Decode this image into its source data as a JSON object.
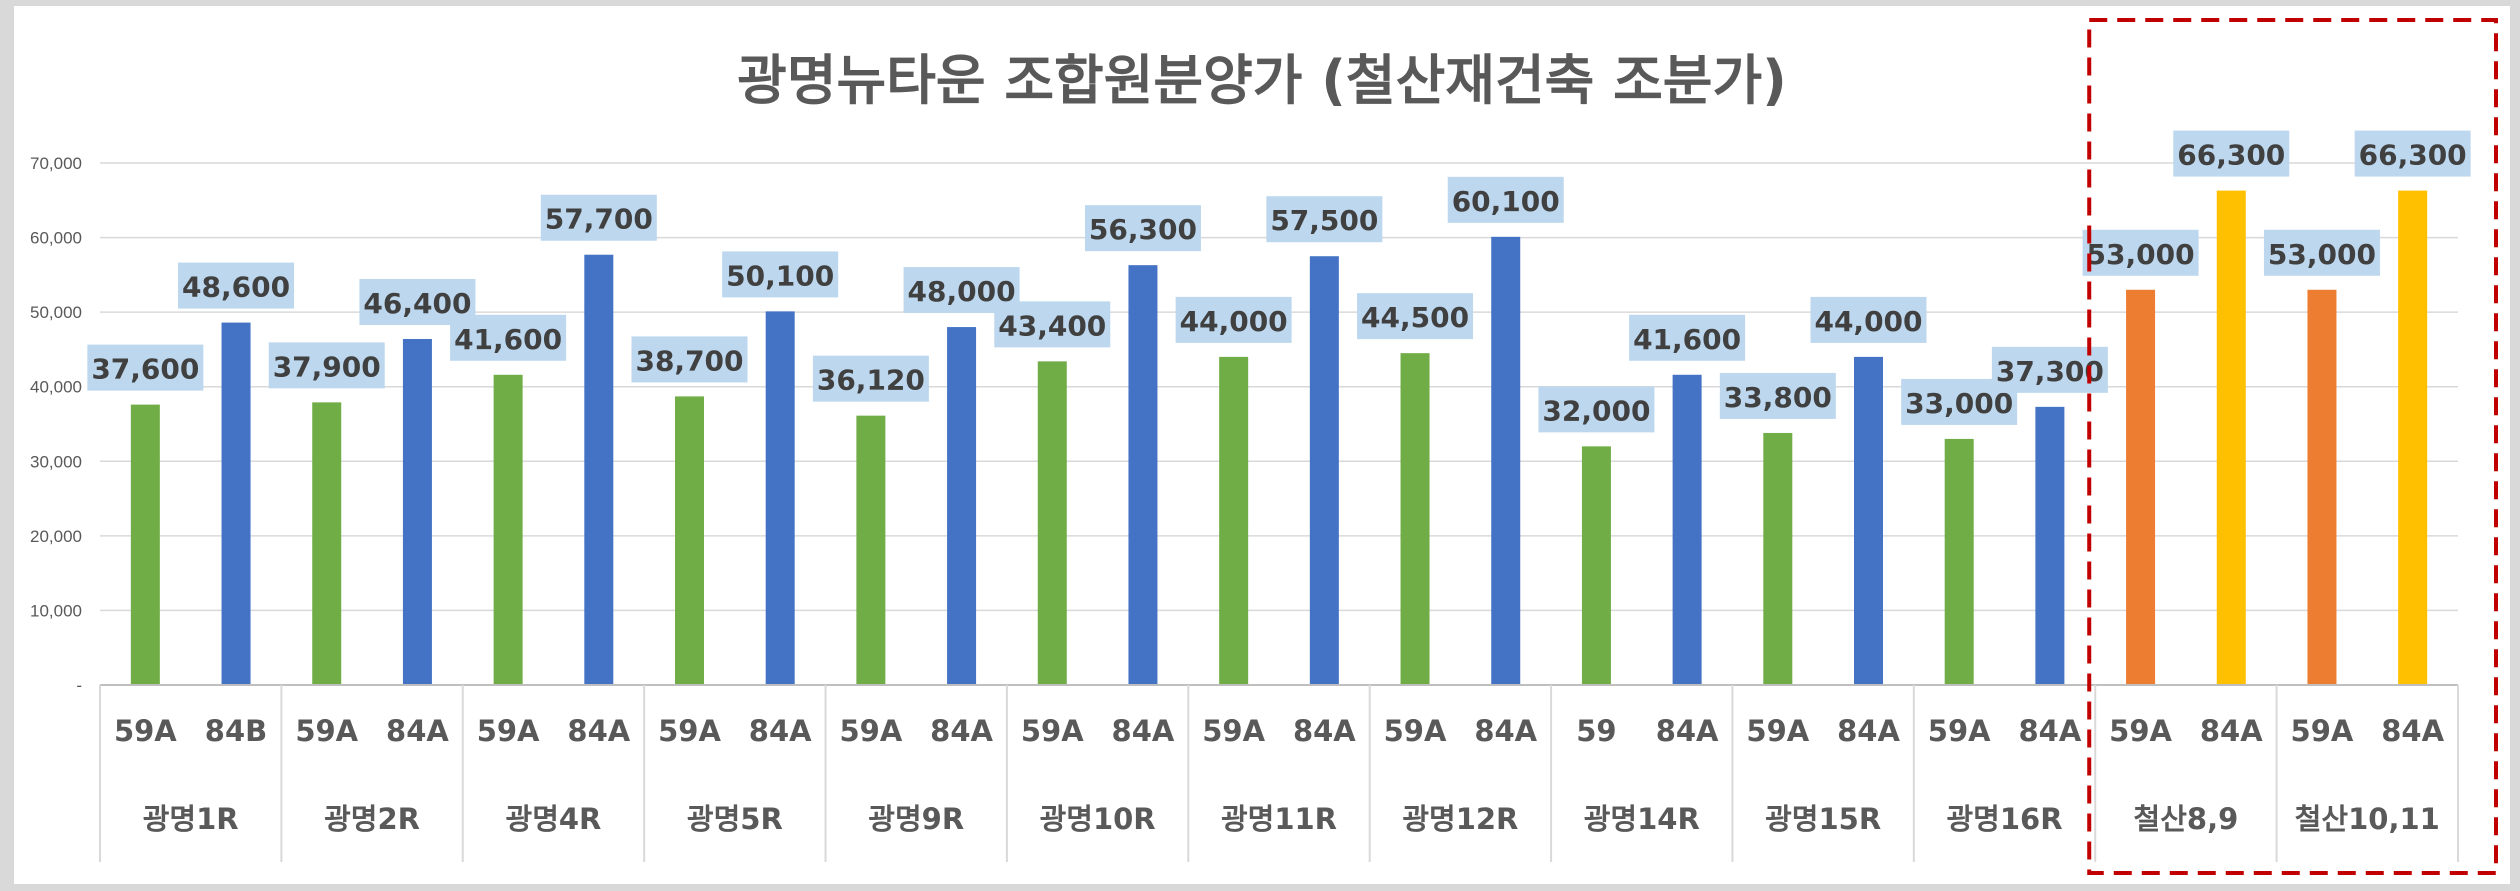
{
  "chart_data": {
    "type": "bar",
    "title": "광명뉴타운 조합원분양가 (철산재건축 조분가)",
    "ylim": [
      0,
      70000
    ],
    "yticks": [
      "-",
      "10,000",
      "20,000",
      "30,000",
      "40,000",
      "50,000",
      "60,000",
      "70,000"
    ],
    "grid": true,
    "legend": "none",
    "groups": [
      {
        "name": "광명1R",
        "bars": [
          {
            "label": "59A",
            "value": 37600,
            "value_label": "37,600",
            "color": "#70ad47"
          },
          {
            "label": "84B",
            "value": 48600,
            "value_label": "48,600",
            "color": "#4472c4"
          }
        ]
      },
      {
        "name": "광명2R",
        "bars": [
          {
            "label": "59A",
            "value": 37900,
            "value_label": "37,900",
            "color": "#70ad47"
          },
          {
            "label": "84A",
            "value": 46400,
            "value_label": "46,400",
            "color": "#4472c4"
          }
        ]
      },
      {
        "name": "광명4R",
        "bars": [
          {
            "label": "59A",
            "value": 41600,
            "value_label": "41,600",
            "color": "#70ad47"
          },
          {
            "label": "84A",
            "value": 57700,
            "value_label": "57,700",
            "color": "#4472c4"
          }
        ]
      },
      {
        "name": "광명5R",
        "bars": [
          {
            "label": "59A",
            "value": 38700,
            "value_label": "38,700",
            "color": "#70ad47"
          },
          {
            "label": "84A",
            "value": 50100,
            "value_label": "50,100",
            "color": "#4472c4"
          }
        ]
      },
      {
        "name": "광명9R",
        "bars": [
          {
            "label": "59A",
            "value": 36120,
            "value_label": "36,120",
            "color": "#70ad47"
          },
          {
            "label": "84A",
            "value": 48000,
            "value_label": "48,000",
            "color": "#4472c4"
          }
        ]
      },
      {
        "name": "광명10R",
        "bars": [
          {
            "label": "59A",
            "value": 43400,
            "value_label": "43,400",
            "color": "#70ad47"
          },
          {
            "label": "84A",
            "value": 56300,
            "value_label": "56,300",
            "color": "#4472c4"
          }
        ]
      },
      {
        "name": "광명11R",
        "bars": [
          {
            "label": "59A",
            "value": 44000,
            "value_label": "44,000",
            "color": "#70ad47"
          },
          {
            "label": "84A",
            "value": 57500,
            "value_label": "57,500",
            "color": "#4472c4"
          }
        ]
      },
      {
        "name": "광명12R",
        "bars": [
          {
            "label": "59A",
            "value": 44500,
            "value_label": "44,500",
            "color": "#70ad47"
          },
          {
            "label": "84A",
            "value": 60100,
            "value_label": "60,100",
            "color": "#4472c4"
          }
        ]
      },
      {
        "name": "광명14R",
        "bars": [
          {
            "label": "59",
            "value": 32000,
            "value_label": "32,000",
            "color": "#70ad47"
          },
          {
            "label": "84A",
            "value": 41600,
            "value_label": "41,600",
            "color": "#4472c4"
          }
        ]
      },
      {
        "name": "광명15R",
        "bars": [
          {
            "label": "59A",
            "value": 33800,
            "value_label": "33,800",
            "color": "#70ad47"
          },
          {
            "label": "84A",
            "value": 44000,
            "value_label": "44,000",
            "color": "#4472c4"
          }
        ]
      },
      {
        "name": "광명16R",
        "bars": [
          {
            "label": "59A",
            "value": 33000,
            "value_label": "33,000",
            "color": "#70ad47"
          },
          {
            "label": "84A",
            "value": 37300,
            "value_label": "37,300",
            "color": "#4472c4"
          }
        ]
      },
      {
        "name": "철산8,9",
        "bars": [
          {
            "label": "59A",
            "value": 53000,
            "value_label": "53,000",
            "color": "#ed7d31"
          },
          {
            "label": "84A",
            "value": 66300,
            "value_label": "66,300",
            "color": "#ffc000"
          }
        ]
      },
      {
        "name": "철산10,11",
        "bars": [
          {
            "label": "59A",
            "value": 53000,
            "value_label": "53,000",
            "color": "#ed7d31"
          },
          {
            "label": "84A",
            "value": 66300,
            "value_label": "66,300",
            "color": "#ffc000"
          }
        ]
      }
    ],
    "highlight": {
      "from_group": 11,
      "to_group": 12,
      "style": "dashed",
      "color": "#c00000"
    },
    "colors": {
      "label_box": "#bdd7ee",
      "grid": "#d9d9d9",
      "axis_text": "#595959"
    }
  }
}
